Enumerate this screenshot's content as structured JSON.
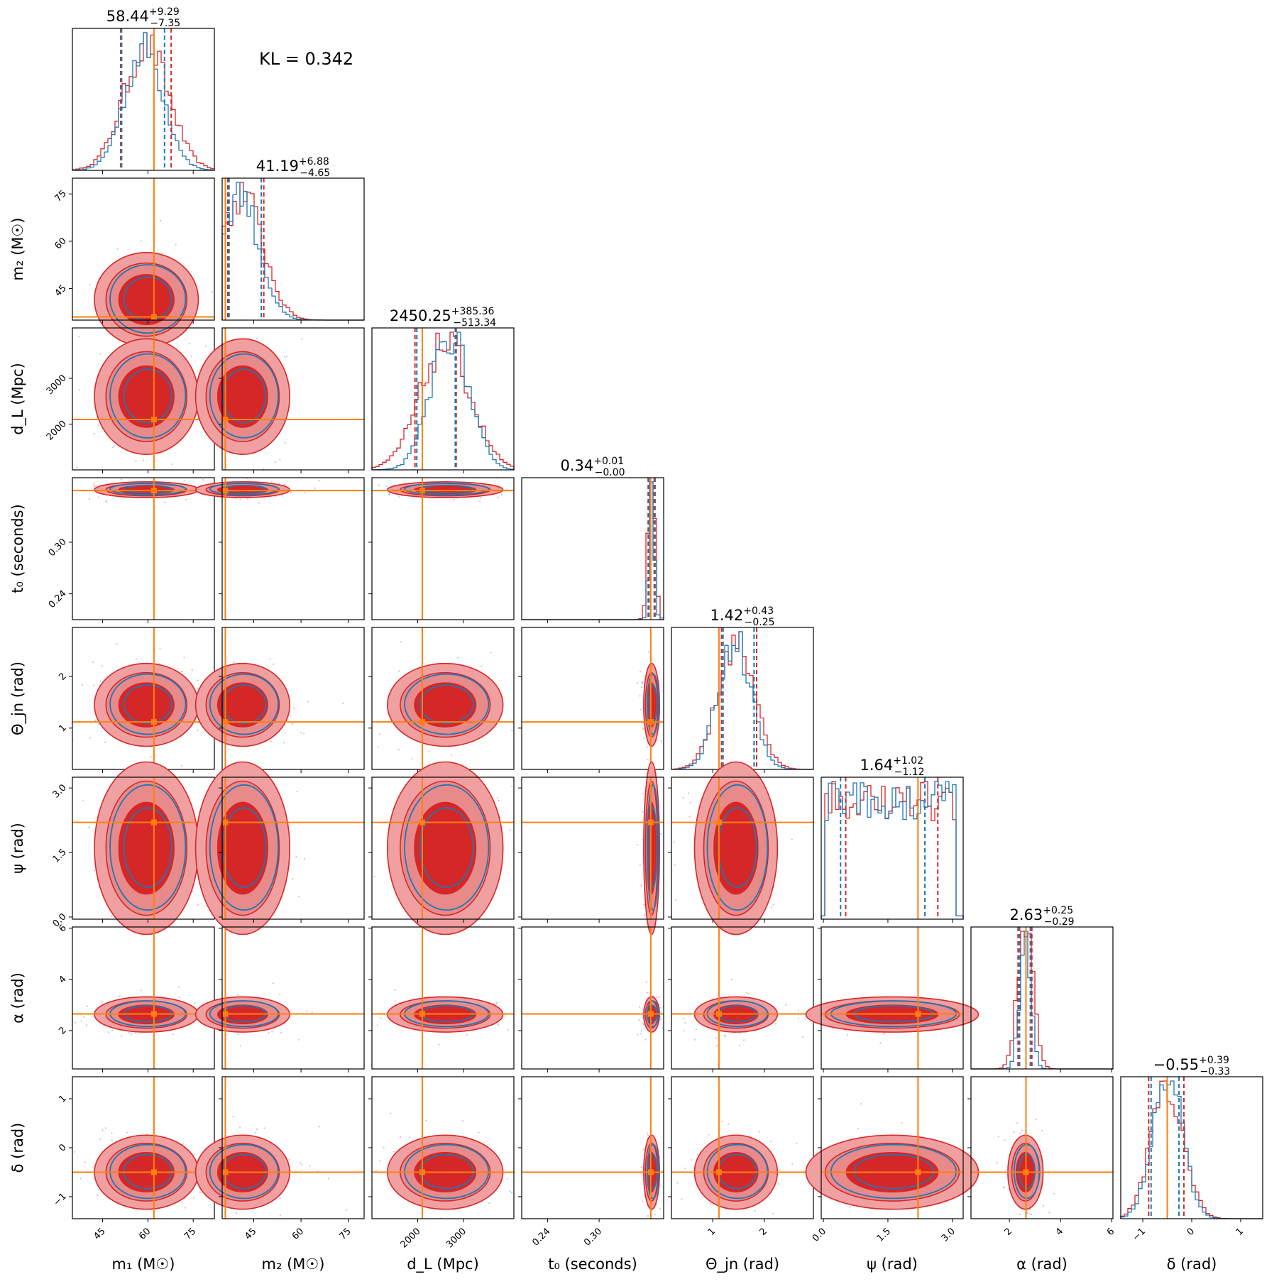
{
  "figure": {
    "kl_text": "KL = 0.342",
    "colors": {
      "model_a": "#d62728",
      "model_b": "#1f77b4",
      "truth": "#ff7f0e"
    }
  },
  "chart_data": {
    "type": "corner",
    "series": [
      {
        "name": "",
        "color": "#d62728",
        "fill": true
      },
      {
        "name": "",
        "color": "#1f77b4",
        "fill": false
      }
    ],
    "parameters": [
      {
        "key": "m1",
        "label": "m₁ (M☉)",
        "range": [
          35,
          82
        ],
        "ticks": [
          45,
          60,
          75
        ],
        "tick_labels": [
          "45",
          "60",
          "75"
        ],
        "truth": 62,
        "title_median": "58.44",
        "title_plus": "+9.29",
        "title_minus": "−7.35",
        "red_mean": 59.5,
        "red_sd": 7.5,
        "blue_mean": 58.8,
        "blue_sd": 6.5,
        "red_q": [
          51,
          67.7
        ],
        "blue_q": [
          51.3,
          65.5
        ]
      },
      {
        "key": "m2",
        "label": "m₂ (M☉)",
        "range": [
          35,
          80
        ],
        "ticks": [
          45,
          60,
          75
        ],
        "tick_labels": [
          "45",
          "60",
          "75"
        ],
        "truth": 36,
        "title_median": "41.19",
        "title_plus": "+6.88",
        "title_minus": "−4.65",
        "red_mean": 41.5,
        "red_sd": 6.5,
        "blue_mean": 40.5,
        "blue_sd": 6.0,
        "red_q": [
          36.8,
          48.2
        ],
        "blue_q": [
          37.2,
          47.4
        ]
      },
      {
        "key": "dl",
        "label": "d_L (Mpc)",
        "range": [
          1000,
          4100
        ],
        "ticks": [
          2000,
          3000
        ],
        "tick_labels": [
          "2000",
          "3000"
        ],
        "truth": 2100,
        "title_median": "2450.25",
        "title_plus": "+385.36",
        "title_minus": "−513.34",
        "red_mean": 2600,
        "red_sd": 550,
        "blue_mean": 2700,
        "blue_sd": 420,
        "red_q": [
          1940,
          2840
        ],
        "blue_q": [
          1980,
          2820
        ]
      },
      {
        "key": "t0",
        "label": "t₀ (seconds)",
        "range": [
          0.21,
          0.375
        ],
        "ticks": [
          0.24,
          0.3
        ],
        "tick_labels": [
          "0.24",
          "0.30"
        ],
        "truth": 0.36,
        "title_median": "0.34",
        "title_plus": "+0.01",
        "title_minus": "−0.00",
        "red_mean": 0.361,
        "red_sd": 0.004,
        "blue_mean": 0.361,
        "blue_sd": 0.003,
        "red_q": [
          0.357,
          0.365
        ],
        "blue_q": [
          0.358,
          0.364
        ]
      },
      {
        "key": "theta",
        "label": "Θ_jn (rad)",
        "range": [
          0.2,
          2.95
        ],
        "ticks": [
          1,
          2
        ],
        "tick_labels": [
          "1",
          "2"
        ],
        "truth": 1.12,
        "title_median": "1.42",
        "title_plus": "+0.43",
        "title_minus": "−0.25",
        "red_mean": 1.45,
        "red_sd": 0.35,
        "blue_mean": 1.42,
        "blue_sd": 0.32,
        "red_q": [
          1.17,
          1.85
        ],
        "blue_q": [
          1.2,
          1.8
        ]
      },
      {
        "key": "psi",
        "label": "ψ (rad)",
        "range": [
          -0.05,
          3.25
        ],
        "ticks": [
          0,
          1.5,
          3
        ],
        "tick_labels": [
          "0.0",
          "1.5",
          "3.0"
        ],
        "truth": 2.2,
        "title_median": "1.64",
        "title_plus": "+1.02",
        "title_minus": "−1.12",
        "red_mean": 1.6,
        "red_sd": 0.9,
        "blue_mean": 1.6,
        "blue_sd": 0.9,
        "red_q": [
          0.52,
          2.66
        ],
        "blue_q": [
          0.4,
          2.36
        ]
      },
      {
        "key": "alpha",
        "label": "α (rad)",
        "range": [
          0.5,
          6.05
        ],
        "ticks": [
          2,
          4,
          6
        ],
        "tick_labels": [
          "2",
          "4",
          "6"
        ],
        "truth": 2.65,
        "title_median": "2.63",
        "title_plus": "+0.25",
        "title_minus": "−0.29",
        "red_mean": 2.63,
        "red_sd": 0.3,
        "blue_mean": 2.62,
        "blue_sd": 0.22,
        "red_q": [
          2.34,
          2.88
        ],
        "blue_q": [
          2.4,
          2.82
        ]
      },
      {
        "key": "delta",
        "label": "δ (rad)",
        "range": [
          -1.45,
          1.45
        ],
        "ticks": [
          -1,
          0,
          1
        ],
        "tick_labels": [
          "−1",
          "0",
          "1"
        ],
        "truth": -0.5,
        "title_median": "−0.55",
        "title_plus": "+0.39",
        "title_minus": "−0.33",
        "red_mean": -0.5,
        "red_sd": 0.33,
        "blue_mean": -0.5,
        "blue_sd": 0.3,
        "red_q": [
          -0.88,
          -0.16
        ],
        "blue_q": [
          -0.83,
          -0.26
        ]
      }
    ]
  }
}
